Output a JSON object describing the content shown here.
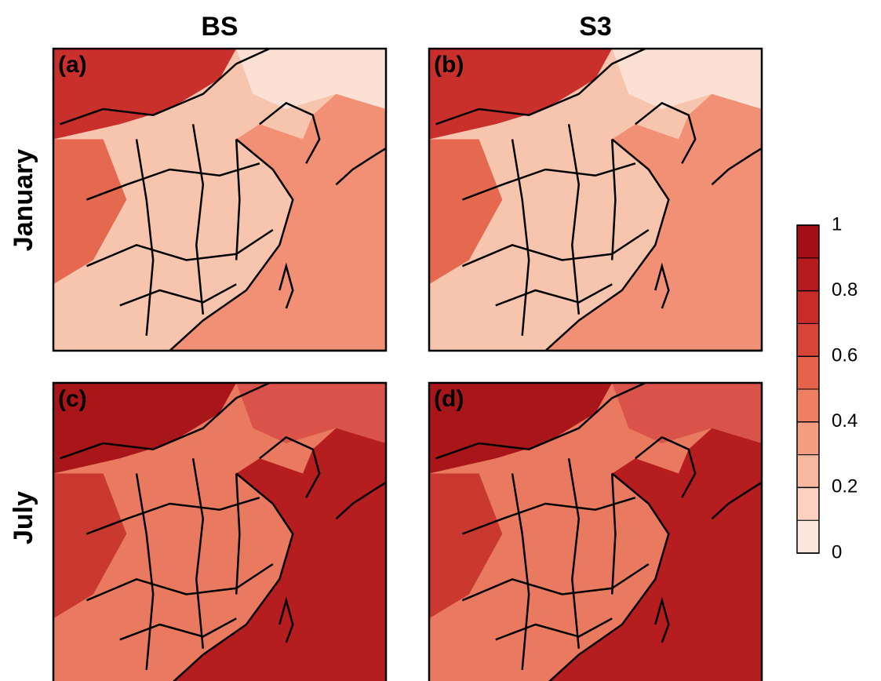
{
  "columns": [
    "BS",
    "S3"
  ],
  "rows": [
    "January",
    "July"
  ],
  "panels": [
    "(a)",
    "(b)",
    "(c)",
    "(d)"
  ],
  "colorbar": {
    "lim": [
      0,
      1
    ],
    "ticks": [
      0,
      0.2,
      0.4,
      0.6,
      0.8,
      1
    ],
    "colors": [
      "#fde7dd",
      "#fcd3c1",
      "#f9b9a0",
      "#f59d80",
      "#ef7f62",
      "#e6624a",
      "#d84537",
      "#c72c28",
      "#b51b1f",
      "#a30f16"
    ]
  }
}
